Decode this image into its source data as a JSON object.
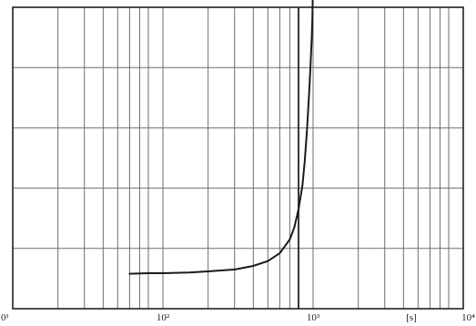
{
  "chart_data": {
    "type": "line",
    "title": "",
    "xlabel": "[s]",
    "ylabel": "",
    "x_scale": "log",
    "xlim": [
      10,
      10000
    ],
    "ylim": [
      0,
      5
    ],
    "grid": true,
    "x_ticks": [
      {
        "value": 10,
        "label": "0¹"
      },
      {
        "value": 100,
        "label": "10²"
      },
      {
        "value": 1000,
        "label": "10³"
      },
      {
        "value": 10000,
        "label": "10⁴"
      }
    ],
    "x_minor_gridlines": [
      20,
      30,
      40,
      50,
      60,
      70,
      80,
      200,
      300,
      400,
      500,
      600,
      700,
      800,
      2000,
      3000,
      4000,
      5000,
      6000,
      7000,
      8000
    ],
    "y_gridlines": [
      1,
      2,
      3,
      4
    ],
    "series": [
      {
        "x": [
          60,
          80,
          100,
          150,
          200,
          300,
          400,
          500,
          600,
          700,
          750,
          800,
          850,
          880,
          910,
          940,
          960,
          980,
          990,
          995,
          1000
        ],
        "y": [
          0.58,
          0.59,
          0.59,
          0.6,
          0.62,
          0.65,
          0.71,
          0.79,
          0.92,
          1.15,
          1.35,
          1.65,
          2.05,
          2.45,
          2.95,
          3.55,
          4.0,
          4.5,
          4.85,
          5.2,
          5.75
        ]
      }
    ],
    "vertical_marker_x": 800
  }
}
